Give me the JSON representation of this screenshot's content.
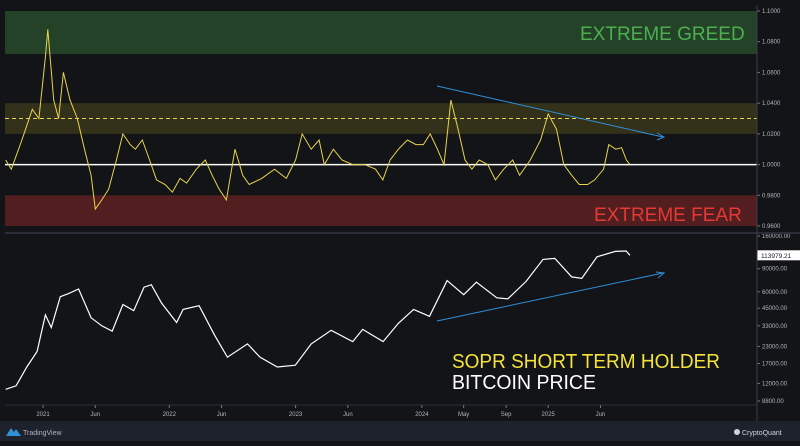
{
  "footer": {
    "left_brand": "TradingView",
    "right_brand": "CryptoQuant"
  },
  "colors": {
    "greed": "#4caf50",
    "fear": "#e53935",
    "sopr": "#e8d44d",
    "price": "#ffffff",
    "trend": "#2f8fd8"
  },
  "chart_data": [
    {
      "type": "line",
      "label": "SOPR SHORT TERM HOLDER",
      "ylim": [
        0.96,
        1.1
      ],
      "y_ticks": [
        "1.1000",
        "1.0800",
        "1.0600",
        "1.0400",
        "1.0200",
        "1.0000",
        "0.9800",
        "0.9600"
      ],
      "zones": [
        {
          "label": "EXTREME GREED",
          "from": 1.072,
          "to": 1.1,
          "color": "#4caf50"
        },
        {
          "label": "",
          "from": 1.02,
          "to": 1.04,
          "color": "#c9b526"
        },
        {
          "label": "EXTREME FEAR",
          "from": 0.96,
          "to": 0.98,
          "color": "#e53935"
        }
      ],
      "reference_lines": [
        {
          "value": 1.0,
          "style": "solid",
          "color": "#ffffff"
        },
        {
          "value": 1.03,
          "style": "dashed",
          "color": "#e8d44d"
        }
      ],
      "trend_arrow": "down",
      "points": [
        [
          "2020-09-15",
          1.003
        ],
        [
          "2020-10-01",
          0.997
        ],
        [
          "2020-11-01",
          1.016
        ],
        [
          "2020-12-01",
          1.036
        ],
        [
          "2020-12-20",
          1.03
        ],
        [
          "2021-01-08",
          1.07
        ],
        [
          "2021-01-15",
          1.088
        ],
        [
          "2021-02-01",
          1.042
        ],
        [
          "2021-02-15",
          1.03
        ],
        [
          "2021-03-01",
          1.06
        ],
        [
          "2021-03-20",
          1.042
        ],
        [
          "2021-04-10",
          1.03
        ],
        [
          "2021-05-01",
          1.01
        ],
        [
          "2021-05-20",
          0.993
        ],
        [
          "2021-06-01",
          0.971
        ],
        [
          "2021-06-20",
          0.977
        ],
        [
          "2021-07-10",
          0.984
        ],
        [
          "2021-08-01",
          1.003
        ],
        [
          "2021-08-20",
          1.02
        ],
        [
          "2021-09-10",
          1.013
        ],
        [
          "2021-09-25",
          1.01
        ],
        [
          "2021-10-15",
          1.016
        ],
        [
          "2021-11-05",
          1.003
        ],
        [
          "2021-11-25",
          0.99
        ],
        [
          "2021-12-20",
          0.987
        ],
        [
          "2022-01-10",
          0.982
        ],
        [
          "2022-02-01",
          0.991
        ],
        [
          "2022-02-20",
          0.988
        ],
        [
          "2022-03-20",
          0.997
        ],
        [
          "2022-04-15",
          1.003
        ],
        [
          "2022-05-05",
          0.993
        ],
        [
          "2022-05-25",
          0.984
        ],
        [
          "2022-06-15",
          0.977
        ],
        [
          "2022-07-10",
          1.01
        ],
        [
          "2022-08-01",
          0.993
        ],
        [
          "2022-08-20",
          0.987
        ],
        [
          "2022-09-25",
          0.991
        ],
        [
          "2022-11-01",
          0.997
        ],
        [
          "2022-12-05",
          0.991
        ],
        [
          "2023-01-01",
          1.003
        ],
        [
          "2023-01-20",
          1.02
        ],
        [
          "2023-02-15",
          1.01
        ],
        [
          "2023-03-10",
          1.016
        ],
        [
          "2023-03-25",
          1.0
        ],
        [
          "2023-04-20",
          1.01
        ],
        [
          "2023-05-15",
          1.003
        ],
        [
          "2023-06-15",
          1.0
        ],
        [
          "2023-07-20",
          1.0
        ],
        [
          "2023-08-20",
          0.997
        ],
        [
          "2023-09-10",
          0.99
        ],
        [
          "2023-10-01",
          1.003
        ],
        [
          "2023-10-25",
          1.01
        ],
        [
          "2023-11-20",
          1.016
        ],
        [
          "2023-12-15",
          1.013
        ],
        [
          "2024-01-05",
          1.013
        ],
        [
          "2024-01-25",
          1.02
        ],
        [
          "2024-02-15",
          1.01
        ],
        [
          "2024-03-05",
          1.0
        ],
        [
          "2024-03-25",
          1.042
        ],
        [
          "2024-04-15",
          1.023
        ],
        [
          "2024-05-05",
          1.003
        ],
        [
          "2024-05-25",
          0.997
        ],
        [
          "2024-06-15",
          1.003
        ],
        [
          "2024-07-10",
          1.0
        ],
        [
          "2024-08-01",
          0.99
        ],
        [
          "2024-08-25",
          0.997
        ],
        [
          "2024-09-20",
          1.003
        ],
        [
          "2024-10-10",
          0.993
        ],
        [
          "2024-11-10",
          1.003
        ],
        [
          "2024-12-10",
          1.016
        ],
        [
          "2025-01-01",
          1.033
        ],
        [
          "2025-01-25",
          1.023
        ],
        [
          "2025-02-15",
          1.0
        ],
        [
          "2025-03-10",
          0.993
        ],
        [
          "2025-04-01",
          0.987
        ],
        [
          "2025-04-25",
          0.987
        ],
        [
          "2025-05-15",
          0.99
        ],
        [
          "2025-06-10",
          0.997
        ],
        [
          "2025-06-25",
          1.013
        ],
        [
          "2025-07-15",
          1.01
        ],
        [
          "2025-08-01",
          1.011
        ],
        [
          "2025-08-15",
          1.003
        ],
        [
          "2025-08-25",
          1.0
        ]
      ]
    },
    {
      "type": "line",
      "label": "BITCOIN PRICE",
      "scale": "log",
      "ylim": [
        8800,
        160000
      ],
      "y_ticks": [
        "160000.00",
        "90000.00",
        "60000.00",
        "45000.00",
        "33000.00",
        "23000.00",
        "17000.00",
        "12000.00",
        "8800.00"
      ],
      "last_value_label": "113979.21",
      "trend_arrow": "up",
      "points": [
        [
          "2020-09-15",
          10800
        ],
        [
          "2020-10-15",
          11500
        ],
        [
          "2020-11-15",
          16000
        ],
        [
          "2020-12-15",
          21000
        ],
        [
          "2021-01-08",
          40000
        ],
        [
          "2021-01-25",
          32000
        ],
        [
          "2021-02-20",
          55000
        ],
        [
          "2021-03-15",
          58000
        ],
        [
          "2021-04-14",
          63000
        ],
        [
          "2021-05-20",
          38000
        ],
        [
          "2021-06-20",
          33000
        ],
        [
          "2021-07-20",
          30000
        ],
        [
          "2021-08-20",
          48000
        ],
        [
          "2021-09-20",
          43000
        ],
        [
          "2021-10-20",
          65000
        ],
        [
          "2021-11-10",
          68000
        ],
        [
          "2021-12-10",
          49000
        ],
        [
          "2022-01-22",
          35000
        ],
        [
          "2022-02-10",
          44000
        ],
        [
          "2022-03-28",
          47000
        ],
        [
          "2022-05-12",
          28000
        ],
        [
          "2022-06-18",
          19000
        ],
        [
          "2022-08-15",
          24000
        ],
        [
          "2022-09-20",
          19000
        ],
        [
          "2022-11-09",
          16000
        ],
        [
          "2022-12-31",
          16500
        ],
        [
          "2023-02-15",
          24000
        ],
        [
          "2023-04-14",
          30500
        ],
        [
          "2023-06-15",
          25000
        ],
        [
          "2023-07-14",
          31000
        ],
        [
          "2023-09-11",
          25000
        ],
        [
          "2023-10-25",
          34500
        ],
        [
          "2023-12-08",
          44000
        ],
        [
          "2024-01-23",
          39000
        ],
        [
          "2024-03-14",
          73000
        ],
        [
          "2024-05-01",
          57000
        ],
        [
          "2024-06-07",
          71000
        ],
        [
          "2024-08-05",
          54000
        ],
        [
          "2024-09-06",
          53000
        ],
        [
          "2024-10-29",
          72000
        ],
        [
          "2024-12-17",
          106000
        ],
        [
          "2025-01-20",
          108000
        ],
        [
          "2025-03-10",
          78000
        ],
        [
          "2025-04-08",
          76000
        ],
        [
          "2025-05-22",
          111000
        ],
        [
          "2025-07-14",
          122000
        ],
        [
          "2025-08-14",
          123000
        ],
        [
          "2025-08-25",
          113979
        ]
      ]
    }
  ],
  "x_ticks": [
    {
      "label": "2021",
      "date": "2021-01-01"
    },
    {
      "label": "Jun",
      "date": "2021-06-01"
    },
    {
      "label": "2022",
      "date": "2022-01-01"
    },
    {
      "label": "Jun",
      "date": "2022-06-01"
    },
    {
      "label": "2023",
      "date": "2023-01-01"
    },
    {
      "label": "Jun",
      "date": "2023-06-01"
    },
    {
      "label": "2024",
      "date": "2024-01-01"
    },
    {
      "label": "May",
      "date": "2024-05-01"
    },
    {
      "label": "Sep",
      "date": "2024-09-01"
    },
    {
      "label": "2025",
      "date": "2025-01-01"
    },
    {
      "label": "Jun",
      "date": "2025-06-01"
    }
  ]
}
